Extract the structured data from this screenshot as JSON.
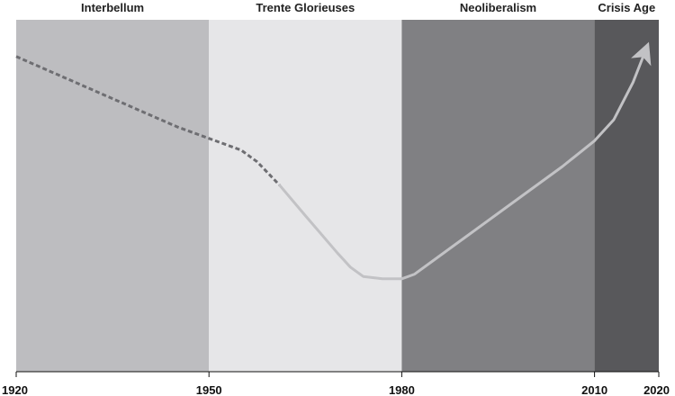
{
  "chart_data": {
    "type": "line",
    "title": "",
    "xlabel": "",
    "ylabel": "",
    "xlim": [
      1920,
      2020
    ],
    "ylim": [
      0,
      100
    ],
    "x_ticks": [
      1920,
      1950,
      1980,
      2010,
      2020
    ],
    "y_axis_visible": false,
    "grid": false,
    "legend": "none",
    "eras": [
      {
        "name": "Interbellum",
        "start": 1920,
        "end": 1950,
        "color": "#bdbdc0"
      },
      {
        "name": "Trente Glorieuses",
        "start": 1950,
        "end": 1980,
        "color": "#e6e6e8"
      },
      {
        "name": "Neoliberalism",
        "start": 1980,
        "end": 2010,
        "color": "#808083"
      },
      {
        "name": "Crisis Age",
        "start": 2010,
        "end": 2020,
        "color": "#58585b"
      }
    ],
    "series": [
      {
        "style": "dashed",
        "color": "#6e6e72",
        "points": [
          {
            "x": 1920,
            "y": 97
          },
          {
            "x": 1925,
            "y": 91
          },
          {
            "x": 1930,
            "y": 85
          },
          {
            "x": 1935,
            "y": 79
          },
          {
            "x": 1940,
            "y": 73
          },
          {
            "x": 1945,
            "y": 67
          },
          {
            "x": 1950,
            "y": 62
          },
          {
            "x": 1955,
            "y": 57
          },
          {
            "x": 1957.5,
            "y": 52
          },
          {
            "x": 1961,
            "y": 42
          }
        ]
      },
      {
        "style": "solid",
        "color": "#c2c2c5",
        "arrow": true,
        "points": [
          {
            "x": 1961,
            "y": 42
          },
          {
            "x": 1965,
            "y": 29
          },
          {
            "x": 1970,
            "y": 13
          },
          {
            "x": 1972,
            "y": 7
          },
          {
            "x": 1974,
            "y": 3
          },
          {
            "x": 1977,
            "y": 2
          },
          {
            "x": 1980,
            "y": 2
          },
          {
            "x": 1982,
            "y": 4
          },
          {
            "x": 1985,
            "y": 10
          },
          {
            "x": 1990,
            "y": 20
          },
          {
            "x": 1995,
            "y": 30
          },
          {
            "x": 2000,
            "y": 40
          },
          {
            "x": 2005,
            "y": 50
          },
          {
            "x": 2010,
            "y": 61
          },
          {
            "x": 2013,
            "y": 70
          },
          {
            "x": 2016,
            "y": 86
          },
          {
            "x": 2018,
            "y": 100
          }
        ]
      }
    ]
  }
}
